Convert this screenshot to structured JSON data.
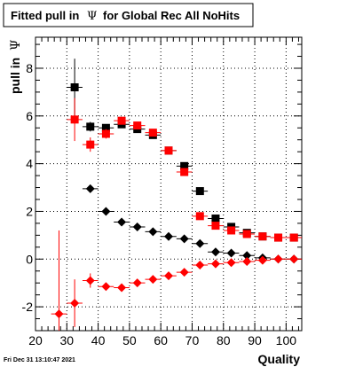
{
  "chart_data": {
    "type": "scatter",
    "title": "Fitted pull in  Ψ  for Global Rec All NoHits",
    "title_prefix": "Fitted pull in",
    "title_symbol": "Ψ",
    "title_suffix": "for Global Rec All NoHits",
    "xlabel": "Quality",
    "ylabel": "pull in  Ψ",
    "ylabel_prefix": "pull in",
    "ylabel_symbol": "Ψ",
    "xlim": [
      20,
      105
    ],
    "ylim": [
      -3,
      9.3
    ],
    "x_ticks": [
      20,
      30,
      40,
      50,
      60,
      70,
      80,
      90,
      100
    ],
    "y_ticks": [
      -2,
      0,
      2,
      4,
      6,
      8
    ],
    "grid": true,
    "colors": {
      "black": "#000000",
      "red": "#ff0000",
      "frame": "#000000",
      "grid": "#000000"
    },
    "series": [
      {
        "marker": "square",
        "color": "#000000",
        "x": [
          32.5,
          37.5,
          42.5,
          47.5,
          52.5,
          57.5,
          62.5,
          67.5,
          72.5,
          77.5,
          82.5,
          87.5,
          92.5,
          97.5,
          102.5
        ],
        "y": [
          7.2,
          5.55,
          5.5,
          5.65,
          5.45,
          5.2,
          4.55,
          3.9,
          2.85,
          1.7,
          1.35,
          1.1,
          0.95,
          0.9,
          0.9
        ],
        "yerr": [
          1.2,
          0.2,
          0.1,
          0.1,
          0.1,
          0.1,
          0.1,
          0.1,
          0.1,
          0.05,
          0.05,
          0.05,
          0.05,
          0.05,
          0.05
        ]
      },
      {
        "marker": "square",
        "color": "#ff0000",
        "x": [
          32.5,
          37.5,
          42.5,
          47.5,
          52.5,
          57.5,
          62.5,
          67.5,
          72.5,
          77.5,
          82.5,
          87.5,
          92.5,
          97.5,
          102.5
        ],
        "y": [
          5.85,
          4.8,
          5.25,
          5.8,
          5.6,
          5.3,
          4.55,
          3.65,
          1.8,
          1.4,
          1.2,
          1.05,
          0.95,
          0.9,
          0.9
        ],
        "yerr": [
          0.9,
          0.3,
          0.2,
          0.1,
          0.1,
          0.1,
          0.1,
          0.1,
          0.1,
          0.05,
          0.05,
          0.05,
          0.05,
          0.05,
          0.05
        ]
      },
      {
        "marker": "diamond",
        "color": "#000000",
        "x": [
          37.5,
          42.5,
          47.5,
          52.5,
          57.5,
          62.5,
          67.5,
          72.5,
          77.5,
          82.5,
          87.5,
          92.5,
          97.5,
          102.5
        ],
        "y": [
          2.95,
          2.0,
          1.55,
          1.35,
          1.15,
          0.95,
          0.85,
          0.65,
          0.3,
          0.25,
          0.15,
          0.05,
          0.0,
          0.0
        ],
        "yerr": [
          0.1,
          0.05,
          0.05,
          0.05,
          0.05,
          0.05,
          0.05,
          0.05,
          0.05,
          0.05,
          0.05,
          0.05,
          0.05,
          0.05
        ]
      },
      {
        "marker": "diamond",
        "color": "#ff0000",
        "x": [
          27.5,
          32.5,
          37.5,
          42.5,
          47.5,
          52.5,
          57.5,
          62.5,
          67.5,
          72.5,
          77.5,
          82.5,
          87.5,
          92.5,
          97.5,
          102.5
        ],
        "y": [
          -2.3,
          -1.85,
          -0.9,
          -1.15,
          -1.2,
          -1.0,
          -0.85,
          -0.7,
          -0.55,
          -0.25,
          -0.2,
          -0.15,
          -0.1,
          -0.05,
          0.0,
          0.0
        ],
        "yerr": [
          3.5,
          1.0,
          0.3,
          0.1,
          0.1,
          0.1,
          0.1,
          0.05,
          0.05,
          0.05,
          0.05,
          0.05,
          0.05,
          0.05,
          0.05,
          0.05
        ]
      }
    ]
  },
  "footer": {
    "timestamp": "Fri Dec 31 13:10:47 2021"
  }
}
